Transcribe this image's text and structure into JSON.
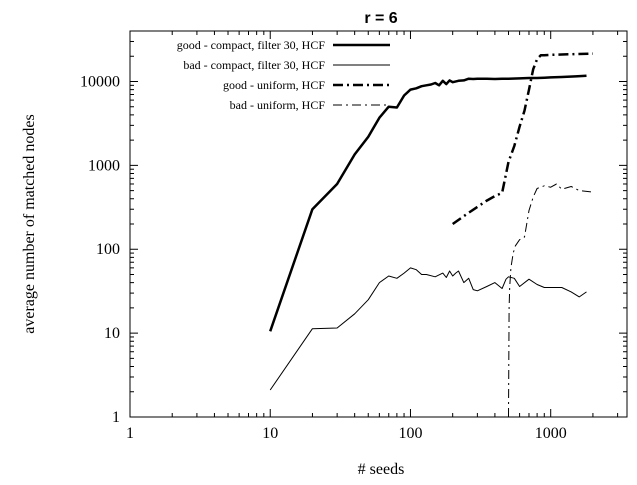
{
  "chart_data": {
    "type": "line",
    "title": "r = 6",
    "xlabel": "# seeds",
    "ylabel": "average number of matched nodes",
    "x_scale": "log",
    "y_scale": "log",
    "xlim": [
      1,
      3500
    ],
    "ylim": [
      1,
      40000
    ],
    "x_ticks": [
      {
        "value": 1,
        "label": "1"
      },
      {
        "value": 10,
        "label": "10"
      },
      {
        "value": 100,
        "label": "100"
      },
      {
        "value": 1000,
        "label": "1000"
      }
    ],
    "y_ticks": [
      {
        "value": 1,
        "label": "1"
      },
      {
        "value": 10,
        "label": "10"
      },
      {
        "value": 100,
        "label": "100"
      },
      {
        "value": 1000,
        "label": "1000"
      },
      {
        "value": 10000,
        "label": "10000"
      }
    ],
    "grid": false,
    "legend_position": "top-left",
    "series": [
      {
        "name": "good - compact, filter 30, HCF",
        "style": "solid-thick",
        "color": "#000000",
        "x": [
          10,
          20,
          30,
          40,
          50,
          60,
          70,
          80,
          90,
          100,
          110,
          120,
          130,
          140,
          150,
          160,
          170,
          180,
          190,
          200,
          220,
          240,
          260,
          280,
          300,
          350,
          400,
          450,
          500,
          600,
          700,
          800,
          900,
          1000,
          1200,
          1500,
          1800
        ],
        "y": [
          10.5,
          300,
          600,
          1350,
          2200,
          3700,
          5000,
          4900,
          6800,
          8000,
          8300,
          8800,
          9000,
          9200,
          9600,
          9000,
          10200,
          9300,
          10300,
          9800,
          10200,
          10300,
          10800,
          10700,
          10800,
          10800,
          10700,
          10800,
          10800,
          10900,
          11000,
          11000,
          11100,
          11200,
          11300,
          11500,
          11700
        ]
      },
      {
        "name": "bad - compact, filter 30, HCF",
        "style": "solid-thin",
        "color": "#000000",
        "x": [
          10,
          20,
          30,
          40,
          50,
          60,
          70,
          80,
          90,
          100,
          110,
          120,
          130,
          150,
          170,
          180,
          190,
          200,
          210,
          220,
          240,
          260,
          280,
          300,
          350,
          400,
          450,
          480,
          500,
          550,
          600,
          700,
          800,
          900,
          1000,
          1200,
          1400,
          1600,
          1800
        ],
        "y": [
          2.1,
          11.3,
          11.5,
          17,
          25,
          40,
          48,
          45,
          52,
          60,
          57,
          50,
          50,
          47,
          52,
          46,
          55,
          48,
          52,
          55,
          40,
          45,
          33,
          32,
          36,
          40,
          34,
          44,
          47,
          45,
          36,
          44,
          38,
          35,
          35,
          35,
          31,
          27,
          31
        ]
      },
      {
        "name": "good - uniform, HCF",
        "style": "dash-dot-thick",
        "color": "#000000",
        "x": [
          200,
          250,
          300,
          350,
          400,
          450,
          500,
          550,
          600,
          650,
          700,
          750,
          800,
          850,
          900,
          1000,
          1200,
          1500,
          2000
        ],
        "y": [
          200,
          260,
          320,
          380,
          430,
          470,
          1100,
          1700,
          2900,
          4500,
          8000,
          14000,
          18500,
          20500,
          20600,
          20800,
          21000,
          21200,
          21500
        ]
      },
      {
        "name": "bad - uniform, HCF",
        "style": "dash-dot-thin",
        "color": "#000000",
        "x": [
          500,
          505,
          510,
          520,
          540,
          560,
          600,
          650,
          700,
          750,
          800,
          900,
          1000,
          1100,
          1200,
          1400,
          1600,
          2000
        ],
        "y": [
          1,
          20,
          35,
          60,
          90,
          110,
          130,
          140,
          290,
          420,
          530,
          570,
          550,
          600,
          520,
          560,
          500,
          480
        ]
      }
    ]
  }
}
